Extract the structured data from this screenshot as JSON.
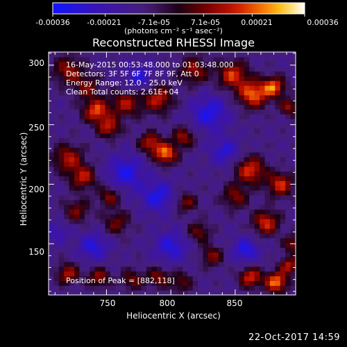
{
  "colorbar": {
    "ticks": [
      "-0.00036",
      "-0.00021",
      "-7.1e-05",
      "7.1e-05",
      "0.00021",
      "0.00036"
    ],
    "tick_values": [
      -0.00036,
      -0.00021,
      -7.1e-05,
      7.1e-05,
      0.00021,
      0.00036
    ],
    "range": [
      -0.00036,
      0.00036
    ],
    "unit_label": "(photons cm⁻² s⁻¹ asec⁻²)"
  },
  "title": "Reconstructed RHESSI Image",
  "annotations": {
    "time": "16-May-2015 00:53:48.000 to 01:03:48.000",
    "detectors": "Detectors: 3F 5F 6F 7F 8F 9F, Att 0",
    "energy": "Energy Range: 12.0 - 25.0 keV",
    "clean": "Clean      Total counts: 2.61E+04",
    "peak": "Position of Peak = [882,118]"
  },
  "timestamp": "22-Oct-2017 14:59",
  "chart_data": {
    "type": "heatmap",
    "title": "Reconstructed RHESSI Image",
    "xlabel": "Heliocentric X (arcsec)",
    "ylabel": "Heliocentric Y (arcsec)",
    "xlim": [
      705,
      897
    ],
    "ylim": [
      107,
      311
    ],
    "xticks": [
      750,
      800,
      850
    ],
    "yticks": [
      150,
      200,
      250,
      300
    ],
    "colormap": "red-temperature (purple-blue negative, black-red-orange-yellow-white positive)",
    "peak_position": [
      882,
      118
    ],
    "blobs": [
      {
        "x": 720,
        "y": 296,
        "amp": 0.62,
        "s": 8
      },
      {
        "x": 735,
        "y": 282,
        "amp": 0.5,
        "s": 7
      },
      {
        "x": 742,
        "y": 262,
        "amp": 0.88,
        "s": 7
      },
      {
        "x": 752,
        "y": 248,
        "amp": 0.7,
        "s": 6
      },
      {
        "x": 765,
        "y": 268,
        "amp": 0.65,
        "s": 8
      },
      {
        "x": 790,
        "y": 272,
        "amp": 0.72,
        "s": 8
      },
      {
        "x": 818,
        "y": 296,
        "amp": 0.6,
        "s": 8
      },
      {
        "x": 848,
        "y": 292,
        "amp": 0.8,
        "s": 8
      },
      {
        "x": 864,
        "y": 276,
        "amp": 0.95,
        "s": 8
      },
      {
        "x": 880,
        "y": 282,
        "amp": 0.9,
        "s": 6
      },
      {
        "x": 892,
        "y": 265,
        "amp": 0.6,
        "s": 5
      },
      {
        "x": 796,
        "y": 226,
        "amp": 0.98,
        "s": 6
      },
      {
        "x": 784,
        "y": 235,
        "amp": 0.72,
        "s": 6
      },
      {
        "x": 810,
        "y": 240,
        "amp": 0.6,
        "s": 6
      },
      {
        "x": 720,
        "y": 222,
        "amp": 0.68,
        "s": 8
      },
      {
        "x": 732,
        "y": 206,
        "amp": 0.7,
        "s": 7
      },
      {
        "x": 727,
        "y": 178,
        "amp": 0.5,
        "s": 7
      },
      {
        "x": 752,
        "y": 190,
        "amp": 0.55,
        "s": 6
      },
      {
        "x": 758,
        "y": 168,
        "amp": 0.5,
        "s": 7
      },
      {
        "x": 862,
        "y": 212,
        "amp": 0.82,
        "s": 8
      },
      {
        "x": 885,
        "y": 200,
        "amp": 0.78,
        "s": 7
      },
      {
        "x": 850,
        "y": 190,
        "amp": 0.55,
        "s": 7
      },
      {
        "x": 874,
        "y": 168,
        "amp": 0.8,
        "s": 7
      },
      {
        "x": 895,
        "y": 150,
        "amp": 0.6,
        "s": 5
      },
      {
        "x": 812,
        "y": 185,
        "amp": 0.5,
        "s": 6
      },
      {
        "x": 822,
        "y": 160,
        "amp": 0.52,
        "s": 6
      },
      {
        "x": 832,
        "y": 140,
        "amp": 0.55,
        "s": 6
      },
      {
        "x": 720,
        "y": 125,
        "amp": 0.68,
        "s": 6
      },
      {
        "x": 744,
        "y": 122,
        "amp": 0.6,
        "s": 6
      },
      {
        "x": 770,
        "y": 120,
        "amp": 0.5,
        "s": 6
      },
      {
        "x": 790,
        "y": 122,
        "amp": 0.55,
        "s": 6
      },
      {
        "x": 808,
        "y": 118,
        "amp": 0.48,
        "s": 6
      },
      {
        "x": 862,
        "y": 122,
        "amp": 0.8,
        "s": 6
      },
      {
        "x": 882,
        "y": 118,
        "amp": 1.0,
        "s": 6
      },
      {
        "x": 892,
        "y": 132,
        "amp": 0.7,
        "s": 5
      },
      {
        "x": 775,
        "y": 290,
        "amp": -0.45,
        "s": 8
      },
      {
        "x": 830,
        "y": 260,
        "amp": -0.55,
        "s": 10
      },
      {
        "x": 842,
        "y": 228,
        "amp": -0.45,
        "s": 8
      },
      {
        "x": 765,
        "y": 210,
        "amp": -0.55,
        "s": 10
      },
      {
        "x": 790,
        "y": 190,
        "amp": -0.55,
        "s": 9
      },
      {
        "x": 740,
        "y": 148,
        "amp": -0.5,
        "s": 8
      },
      {
        "x": 800,
        "y": 148,
        "amp": -0.5,
        "s": 9
      },
      {
        "x": 858,
        "y": 145,
        "amp": -0.55,
        "s": 7
      },
      {
        "x": 712,
        "y": 160,
        "amp": -0.35,
        "s": 6
      }
    ]
  }
}
